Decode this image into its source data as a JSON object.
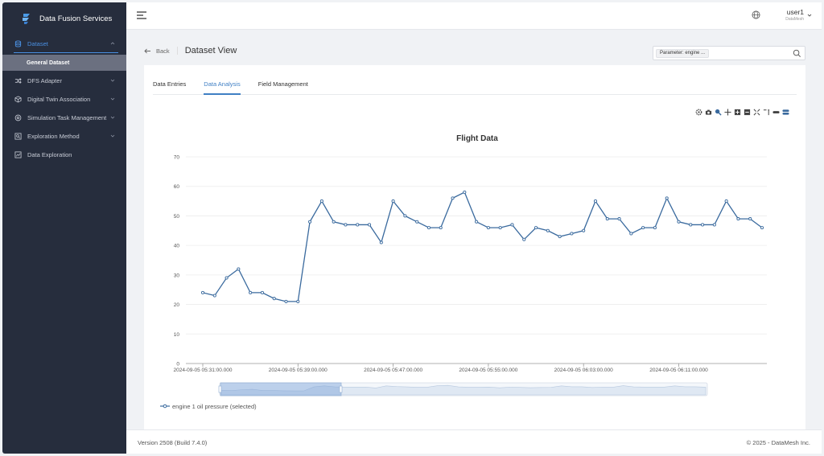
{
  "brand": {
    "name": "Data Fusion Services"
  },
  "sidebar": {
    "items": [
      {
        "label": "Dataset",
        "icon": "database-icon",
        "expanded": true
      },
      {
        "label": "DFS Adapter",
        "icon": "shuffle-icon"
      },
      {
        "label": "Digital Twin Association",
        "icon": "cube-icon"
      },
      {
        "label": "Simulation Task Management",
        "icon": "gear-icon"
      },
      {
        "label": "Exploration Method",
        "icon": "search-doc-icon"
      },
      {
        "label": "Data Exploration",
        "icon": "chart-icon"
      }
    ],
    "sub_items": [
      {
        "label": "General Dataset"
      }
    ]
  },
  "topbar": {
    "user_name": "user1",
    "user_role": "DataMesh"
  },
  "page": {
    "back_label": "Back",
    "title": "Dataset View",
    "param_tag": "Parameter: engine ..."
  },
  "tabs": [
    {
      "label": "Data Entries"
    },
    {
      "label": "Data Analysis",
      "active": true
    },
    {
      "label": "Field Management"
    }
  ],
  "chart_data": {
    "type": "line",
    "title": "Flight Data",
    "ylim": [
      0,
      70
    ],
    "yticks": [
      0,
      10,
      20,
      30,
      40,
      50,
      60,
      70
    ],
    "xtick_labels": [
      "2024-09-05 05:31:00.000",
      "2024-09-05 05:39:00.000",
      "2024-09-05 05:47:00.000",
      "2024-09-05 05:55:00.000",
      "2024-09-05 06:03:00.000",
      "2024-09-05 06:11:00.000"
    ],
    "series": [
      {
        "name": "engine 1 oil pressure (selected)",
        "color": "#3a6a9e",
        "values": [
          24,
          23,
          29,
          32,
          24,
          24,
          22,
          21,
          21,
          48,
          55,
          48,
          47,
          47,
          47,
          41,
          55,
          50,
          48,
          46,
          46,
          56,
          58,
          48,
          46,
          46,
          47,
          42,
          46,
          45,
          43,
          44,
          45,
          55,
          49,
          49,
          44,
          46,
          46,
          56,
          48,
          47,
          47,
          47,
          55,
          49,
          49,
          46
        ]
      }
    ],
    "legend": "bottom-left"
  },
  "footer": {
    "version": "Version 2508 (Build 7.4.0)",
    "copyright": "© 2025 - DataMesh Inc."
  }
}
